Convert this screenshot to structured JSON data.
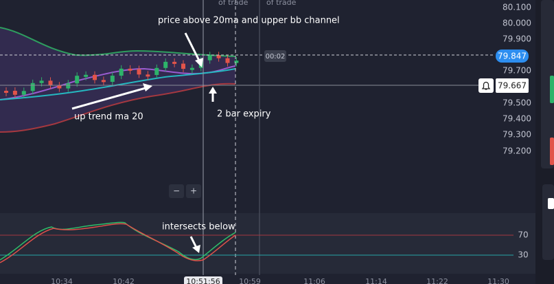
{
  "header_notes": [
    "of trade",
    "of trade"
  ],
  "timer": "00:02",
  "price_axis": [
    "80.100",
    "80.000",
    "79.900",
    "79.700",
    "79.500",
    "79.400",
    "79.300",
    "79.200"
  ],
  "price_tags": {
    "current": "79.847",
    "alert": "79.667"
  },
  "zoom": [
    "−",
    "+"
  ],
  "annotations": [
    "price above 20ma and upper bb channel",
    "up trend ma 20",
    "2 bar expiry",
    "intersects  below"
  ],
  "oscillator_levels": [
    "70",
    "30"
  ],
  "time_axis": [
    "10:34",
    "10:42",
    "10:51:56",
    "10:59",
    "11:06",
    "11:14",
    "11:22",
    "11:30"
  ]
}
